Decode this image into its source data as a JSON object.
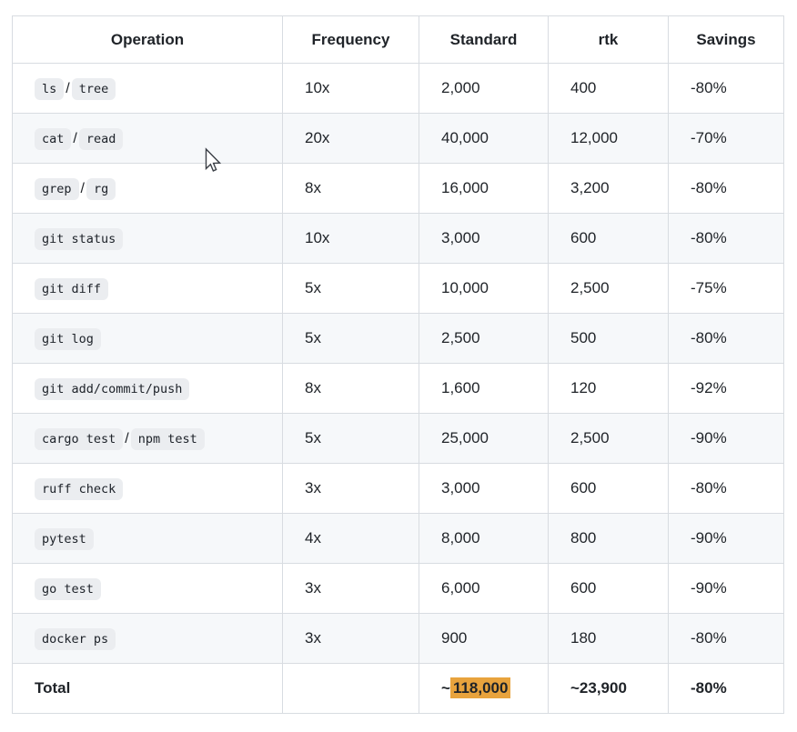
{
  "table": {
    "headers": [
      "Operation",
      "Frequency",
      "Standard",
      "rtk",
      "Savings"
    ],
    "rows": [
      {
        "ops": [
          "ls",
          "tree"
        ],
        "frequency": "10x",
        "standard": "2,000",
        "rtk": "400",
        "savings": "-80%"
      },
      {
        "ops": [
          "cat",
          "read"
        ],
        "frequency": "20x",
        "standard": "40,000",
        "rtk": "12,000",
        "savings": "-70%"
      },
      {
        "ops": [
          "grep",
          "rg"
        ],
        "frequency": "8x",
        "standard": "16,000",
        "rtk": "3,200",
        "savings": "-80%"
      },
      {
        "ops": [
          "git status"
        ],
        "frequency": "10x",
        "standard": "3,000",
        "rtk": "600",
        "savings": "-80%"
      },
      {
        "ops": [
          "git diff"
        ],
        "frequency": "5x",
        "standard": "10,000",
        "rtk": "2,500",
        "savings": "-75%"
      },
      {
        "ops": [
          "git log"
        ],
        "frequency": "5x",
        "standard": "2,500",
        "rtk": "500",
        "savings": "-80%"
      },
      {
        "ops": [
          "git add/commit/push"
        ],
        "frequency": "8x",
        "standard": "1,600",
        "rtk": "120",
        "savings": "-92%"
      },
      {
        "ops": [
          "cargo test",
          "npm test"
        ],
        "frequency": "5x",
        "standard": "25,000",
        "rtk": "2,500",
        "savings": "-90%"
      },
      {
        "ops": [
          "ruff check"
        ],
        "frequency": "3x",
        "standard": "3,000",
        "rtk": "600",
        "savings": "-80%"
      },
      {
        "ops": [
          "pytest"
        ],
        "frequency": "4x",
        "standard": "8,000",
        "rtk": "800",
        "savings": "-90%"
      },
      {
        "ops": [
          "go test"
        ],
        "frequency": "3x",
        "standard": "6,000",
        "rtk": "600",
        "savings": "-90%"
      },
      {
        "ops": [
          "docker ps"
        ],
        "frequency": "3x",
        "standard": "900",
        "rtk": "180",
        "savings": "-80%"
      }
    ],
    "chip_separator": "/",
    "total": {
      "label": "Total",
      "frequency": "",
      "standard_prefix": "~",
      "standard_highlighted": "118,000",
      "rtk": "~23,900",
      "savings": "-80%"
    }
  },
  "icons": {
    "cursor": "arrow-pointer"
  },
  "colors": {
    "highlight": "#e8a33d",
    "stripe": "#f6f8fa",
    "border": "#d8dce1",
    "chip_background": "#ebedf0",
    "text": "#1f2328"
  },
  "chart_data": {
    "type": "table",
    "title": "",
    "columns": [
      "Operation",
      "Frequency",
      "Standard",
      "rtk",
      "Savings"
    ],
    "rows": [
      [
        "ls / tree",
        "10x",
        "2,000",
        "400",
        "-80%"
      ],
      [
        "cat / read",
        "20x",
        "40,000",
        "12,000",
        "-70%"
      ],
      [
        "grep / rg",
        "8x",
        "16,000",
        "3,200",
        "-80%"
      ],
      [
        "git status",
        "10x",
        "3,000",
        "600",
        "-80%"
      ],
      [
        "git diff",
        "5x",
        "10,000",
        "2,500",
        "-75%"
      ],
      [
        "git log",
        "5x",
        "2,500",
        "500",
        "-80%"
      ],
      [
        "git add/commit/push",
        "8x",
        "1,600",
        "120",
        "-92%"
      ],
      [
        "cargo test / npm test",
        "5x",
        "25,000",
        "2,500",
        "-90%"
      ],
      [
        "ruff check",
        "3x",
        "3,000",
        "600",
        "-80%"
      ],
      [
        "pytest",
        "4x",
        "8,000",
        "800",
        "-90%"
      ],
      [
        "go test",
        "3x",
        "6,000",
        "600",
        "-90%"
      ],
      [
        "docker ps",
        "3x",
        "900",
        "180",
        "-80%"
      ]
    ],
    "total_row": [
      "Total",
      "",
      "~118,000",
      "~23,900",
      "-80%"
    ],
    "layout": {
      "stripes": true,
      "grid": true,
      "header_align": "center",
      "body_align": "left"
    }
  }
}
